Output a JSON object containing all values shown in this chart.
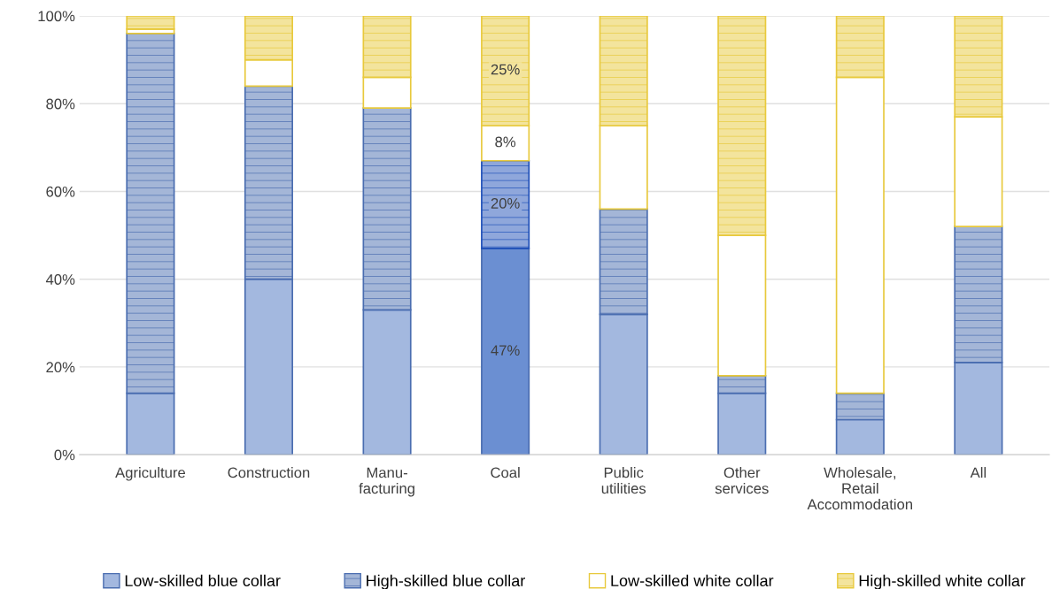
{
  "chart_data": {
    "type": "bar",
    "stacked": true,
    "categories": [
      "Agriculture",
      "Construction",
      "Manu-\nfacturing",
      "Coal",
      "Public\nutilities",
      "Other\nservices",
      "Wholesale,\nRetail\nAccommodation",
      "All"
    ],
    "series": [
      {
        "name": "Low-skilled blue collar",
        "color": "#4a6db0",
        "colors": [
          "#a3b8df",
          "#a3b8df",
          "#a3b8df",
          "#6b8fd2",
          "#a3b8df",
          "#a3b8df",
          "#a3b8df",
          "#a3b8df"
        ],
        "values": [
          14,
          40,
          33,
          47,
          32,
          14,
          8,
          21
        ],
        "value_labels": [
          null,
          null,
          null,
          "47%",
          null,
          null,
          null,
          null
        ]
      },
      {
        "name": "High-skilled blue collar",
        "color": "#4a6db0",
        "colors": [
          "#4a6db0",
          "#4a6db0",
          "#4a6db0",
          "#1f4fb8",
          "#4a6db0",
          "#4a6db0",
          "#4a6db0",
          "#4a6db0"
        ],
        "values": [
          82,
          44,
          46,
          20,
          24,
          4,
          6,
          31
        ],
        "value_labels": [
          null,
          null,
          null,
          "20%",
          null,
          null,
          null,
          null
        ]
      },
      {
        "name": "Low-skilled white collar",
        "color": "#e8c93c",
        "values": [
          1,
          6,
          7,
          8,
          19,
          32,
          72,
          25
        ],
        "value_labels": [
          null,
          null,
          null,
          "8%",
          null,
          null,
          null,
          null
        ]
      },
      {
        "name": "High-skilled white collar",
        "color": "#e8c93c",
        "values": [
          3,
          10,
          14,
          25,
          25,
          50,
          14,
          23
        ],
        "value_labels": [
          null,
          null,
          null,
          "25%",
          null,
          null,
          null,
          null
        ]
      }
    ],
    "ylim": [
      0,
      100
    ],
    "yticks": [
      {
        "value": 0,
        "label": "0%"
      },
      {
        "value": 20,
        "label": "20%"
      },
      {
        "value": 40,
        "label": "40%"
      },
      {
        "value": 60,
        "label": "60%"
      },
      {
        "value": 80,
        "label": "80%"
      },
      {
        "value": 100,
        "label": "100%"
      }
    ],
    "grid": "y",
    "legend": "bottom"
  }
}
